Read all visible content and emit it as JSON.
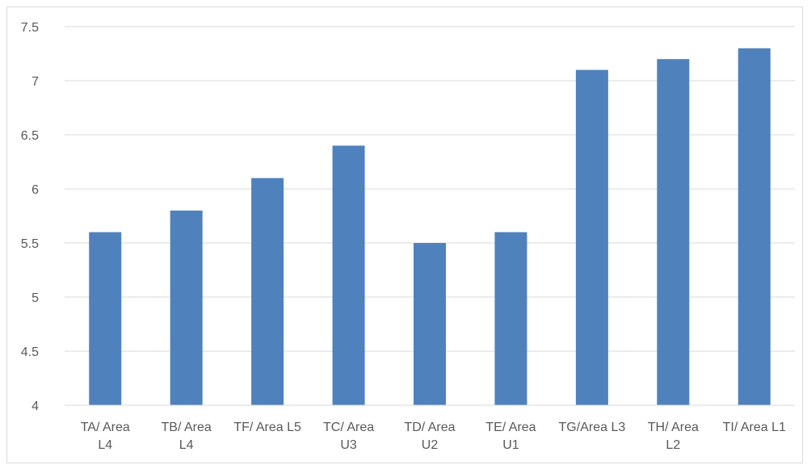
{
  "chart_data": {
    "type": "bar",
    "title": "",
    "xlabel": "",
    "ylabel": "",
    "categories": [
      [
        "TA/ Area",
        "L4"
      ],
      [
        "TB/ Area",
        "L4"
      ],
      [
        "TF/ Area L5"
      ],
      [
        "TC/ Area",
        "U3"
      ],
      [
        "TD/ Area",
        "U2"
      ],
      [
        "TE/ Area",
        "U1"
      ],
      [
        "TG/Area L3"
      ],
      [
        "TH/ Area",
        "L2"
      ],
      [
        "TI/ Area L1"
      ]
    ],
    "values": [
      5.6,
      5.8,
      6.1,
      6.4,
      5.5,
      5.6,
      7.1,
      7.2,
      7.3
    ],
    "ylim": [
      4,
      7.5
    ],
    "yticks": [
      "4",
      "4.5",
      "5",
      "5.5",
      "6",
      "6.5",
      "7",
      "7.5"
    ],
    "grid": true,
    "legend": "none",
    "colors": {
      "bar": "#4f81bd",
      "grid": "#d9d9d9",
      "axis": "#d9d9d9",
      "text": "#595959"
    }
  }
}
